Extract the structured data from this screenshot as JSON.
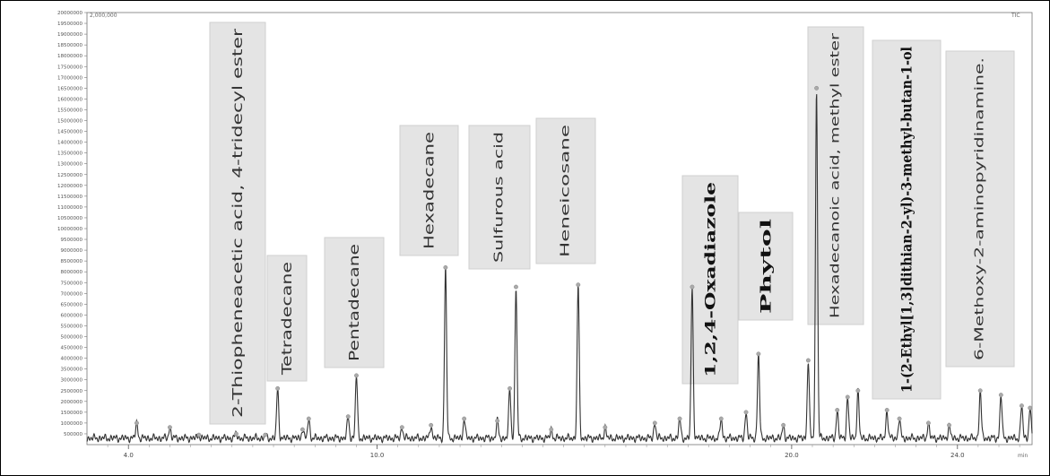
{
  "chart_data": {
    "type": "line",
    "title": "",
    "xlabel": "",
    "ylabel": "",
    "corner_label_left": "2,000,000",
    "corner_label_right": "TIC",
    "x_unit_label": "min",
    "xlim": [
      3.0,
      25.8
    ],
    "ylim": [
      0,
      20000000
    ],
    "x_ticks": [
      {
        "value": 4.0,
        "label": "4.0"
      },
      {
        "value": 10.0,
        "label": "10.0"
      },
      {
        "value": 20.0,
        "label": "20.0"
      },
      {
        "value": 24.0,
        "label": "24.0"
      }
    ],
    "y_ticks": [
      "500000",
      "1000000",
      "1500000",
      "2000000",
      "2500000",
      "3000000",
      "3500000",
      "4000000",
      "4500000",
      "5000000",
      "5500000",
      "6000000",
      "6500000",
      "7000000",
      "7500000",
      "8000000",
      "8500000",
      "9000000",
      "9500000",
      "10000000",
      "10500000",
      "11000000",
      "11500000",
      "12000000",
      "12500000",
      "13000000",
      "13500000",
      "14000000",
      "14500000",
      "15000000",
      "15500000",
      "16000000",
      "16500000",
      "17000000",
      "17500000",
      "18000000",
      "18500000",
      "19000000",
      "19500000",
      "20000000"
    ],
    "baseline": 300000,
    "peaks": [
      {
        "x": 4.2,
        "y": 1000000
      },
      {
        "x": 5.0,
        "y": 800000
      },
      {
        "x": 5.7,
        "y": 450000
      },
      {
        "x": 6.6,
        "y": 500000
      },
      {
        "x": 7.3,
        "y": 450000
      },
      {
        "x": 7.6,
        "y": 2600000,
        "label": "Tetradecane"
      },
      {
        "x": 8.2,
        "y": 700000
      },
      {
        "x": 8.35,
        "y": 1200000
      },
      {
        "x": 9.3,
        "y": 1300000
      },
      {
        "x": 9.5,
        "y": 3200000,
        "label": "Pentadecane"
      },
      {
        "x": 10.6,
        "y": 800000
      },
      {
        "x": 11.3,
        "y": 900000
      },
      {
        "x": 11.65,
        "y": 8200000,
        "label": "Hexadecane"
      },
      {
        "x": 12.1,
        "y": 1200000
      },
      {
        "x": 12.9,
        "y": 1100000
      },
      {
        "x": 13.2,
        "y": 2600000
      },
      {
        "x": 13.35,
        "y": 7300000,
        "label": "Sulfurous acid"
      },
      {
        "x": 14.2,
        "y": 700000
      },
      {
        "x": 14.85,
        "y": 7400000,
        "label": "Heneicosane"
      },
      {
        "x": 15.5,
        "y": 800000
      },
      {
        "x": 16.7,
        "y": 1000000
      },
      {
        "x": 17.3,
        "y": 1200000
      },
      {
        "x": 17.6,
        "y": 7300000,
        "label": "1,2,4-Oxadiazole"
      },
      {
        "x": 18.3,
        "y": 1200000
      },
      {
        "x": 18.9,
        "y": 1500000
      },
      {
        "x": 19.2,
        "y": 4200000,
        "label": "Phytol"
      },
      {
        "x": 19.8,
        "y": 900000
      },
      {
        "x": 20.4,
        "y": 3900000
      },
      {
        "x": 20.6,
        "y": 16500000,
        "label": "Hexadecanoic acid, methyl ester"
      },
      {
        "x": 21.1,
        "y": 1600000
      },
      {
        "x": 21.35,
        "y": 2200000
      },
      {
        "x": 21.6,
        "y": 2500000
      },
      {
        "x": 22.3,
        "y": 1600000
      },
      {
        "x": 22.6,
        "y": 1200000
      },
      {
        "x": 23.3,
        "y": 1000000
      },
      {
        "x": 23.8,
        "y": 900000
      },
      {
        "x": 24.55,
        "y": 2500000
      },
      {
        "x": 25.05,
        "y": 2300000
      },
      {
        "x": 25.55,
        "y": 1800000
      },
      {
        "x": 25.75,
        "y": 1700000
      }
    ],
    "labels": [
      {
        "text": "2-Thiopheneacetic acid, 4-tridecyl ester",
        "style": "normal"
      },
      {
        "text": "Tetradecane",
        "style": "normal"
      },
      {
        "text": "Pentadecane",
        "style": "normal"
      },
      {
        "text": "Hexadecane",
        "style": "normal"
      },
      {
        "text": "Sulfurous acid",
        "style": "small"
      },
      {
        "text": "Heneicosane",
        "style": "small"
      },
      {
        "text": "1,2,4-Oxadiazole",
        "style": "bold"
      },
      {
        "text": "Phytol",
        "style": "bold"
      },
      {
        "text": "Hexadecanoic acid, methyl ester",
        "style": "small"
      },
      {
        "text": "1-(2-Ethyl[1,3]dithian-2-yl)-3-methyl-butan-1-ol",
        "style": "bold"
      },
      {
        "text": "6-Methoxy-2-aminopyridinamine.",
        "style": "small"
      }
    ],
    "grid": false,
    "legend": "none"
  }
}
